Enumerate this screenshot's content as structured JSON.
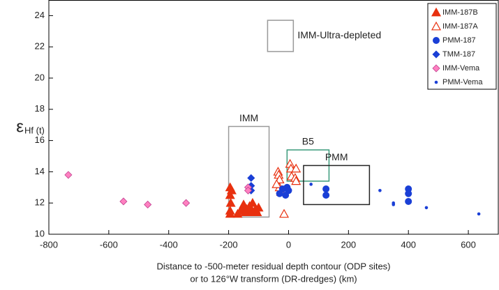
{
  "chart_data": {
    "type": "scatter",
    "xlabel": [
      "Distance to -500-meter residual depth contour (ODP sites)",
      "or to 126°W transform (DR-dredges) (km)"
    ],
    "ylabel": {
      "symbol": "ε",
      "sub": "Hf (t)"
    },
    "xlim": [
      -800,
      700
    ],
    "ylim": [
      10,
      25
    ],
    "xticks": [
      -800,
      -600,
      -400,
      -200,
      0,
      200,
      400,
      600
    ],
    "yticks": [
      10,
      12,
      14,
      16,
      18,
      20,
      22,
      24
    ],
    "legend": "upper right",
    "series": [
      {
        "name": "IMM-187B",
        "color": "#e8300f",
        "marker": "triangle-filled",
        "x": [
          -195,
          -195,
          -193,
          -195,
          -195,
          -190,
          -160,
          -155,
          -150,
          -140,
          -130,
          -120,
          -110,
          -105,
          -100,
          -125,
          -170,
          -145
        ],
        "values": [
          11.3,
          11.5,
          12.0,
          12.5,
          13.0,
          12.8,
          11.5,
          11.7,
          11.9,
          11.6,
          11.8,
          12.0,
          11.6,
          11.4,
          11.7,
          11.4,
          11.3,
          11.4
        ]
      },
      {
        "name": "IMM-187A",
        "color": "#e8300f",
        "marker": "triangle-open",
        "x": [
          -35,
          -33,
          -30,
          -30,
          -25,
          5,
          8,
          10,
          25,
          22,
          25,
          -15,
          -40
        ],
        "values": [
          14.0,
          13.8,
          13.5,
          13.0,
          12.7,
          14.5,
          14.2,
          13.7,
          14.2,
          13.6,
          13.4,
          11.3,
          13.2
        ]
      },
      {
        "name": "PMM-187",
        "color": "#1a3fd6",
        "marker": "circle",
        "x": [
          -30,
          -20,
          -5,
          0,
          -10,
          125,
          125,
          400,
          400,
          400
        ],
        "values": [
          12.6,
          12.9,
          13.0,
          12.8,
          12.5,
          12.9,
          12.5,
          12.9,
          12.6,
          12.1
        ]
      },
      {
        "name": "TMM-187",
        "color": "#1a3fd6",
        "marker": "diamond",
        "x": [
          -125,
          -125,
          -125
        ],
        "values": [
          13.6,
          13.1,
          12.8
        ]
      },
      {
        "name": "IMM-Vema",
        "color": "#ff80c0",
        "marker": "diamond-light",
        "x": [
          -735,
          -551,
          -470,
          -342,
          -135,
          -135
        ],
        "values": [
          13.8,
          12.1,
          11.9,
          12.0,
          13.0,
          12.8
        ]
      },
      {
        "name": "PMM-Vema",
        "color": "#1a3fd6",
        "marker": "dot",
        "x": [
          75,
          305,
          350,
          350,
          460,
          635
        ],
        "values": [
          13.2,
          12.8,
          12.0,
          11.9,
          11.7,
          11.3
        ]
      }
    ],
    "regions": [
      {
        "label": "IMM",
        "x": [
          -200,
          -65
        ],
        "y": [
          11.1,
          16.9
        ],
        "color": "#999999",
        "label_side": "top"
      },
      {
        "label": "B5",
        "x": [
          -5,
          135
        ],
        "y": [
          13.4,
          15.4
        ],
        "color": "#3a9a7a",
        "label_side": "top"
      },
      {
        "label": "PMM",
        "x": [
          50,
          270
        ],
        "y": [
          11.9,
          14.4
        ],
        "color": "#222222",
        "label_side": "top"
      },
      {
        "label": "IMM-Ultra-depleted",
        "x": [
          -70,
          16
        ],
        "y": [
          21.7,
          23.7
        ],
        "color": "#999999",
        "label_side": "right"
      }
    ]
  }
}
